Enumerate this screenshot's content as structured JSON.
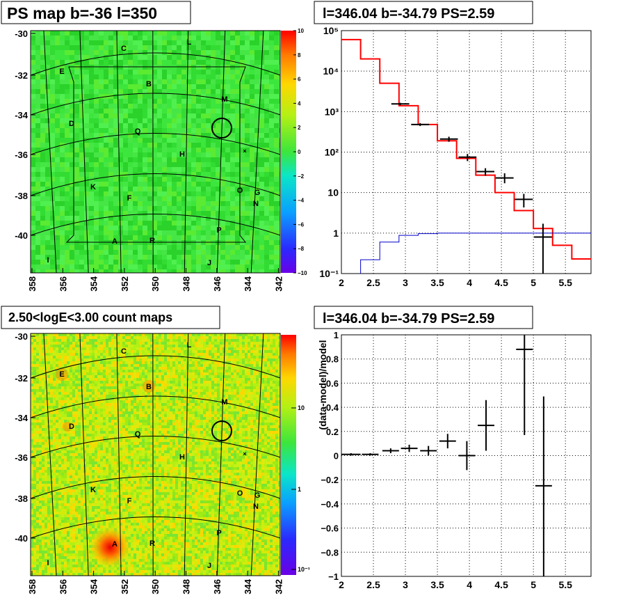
{
  "colors": {
    "map_green": "#3ce63c",
    "hist_red": "#ff0000",
    "model_blue": "#0000cc",
    "data": "#000000"
  },
  "panel_tl": {
    "title": "PS map b=-36 l=350",
    "ylabels": [
      "-30",
      "-32",
      "-34",
      "-36",
      "-38",
      "-40"
    ],
    "xlabels": [
      "358",
      "356",
      "354",
      "352",
      "350",
      "348",
      "346",
      "344",
      "342"
    ],
    "colorbar_labels": [
      "10",
      "8",
      "6",
      "4",
      "2",
      "0",
      "−2",
      "−4",
      "−6",
      "−8",
      "−10"
    ],
    "source_labels": [
      "C",
      "L",
      "E",
      "B",
      "M",
      "D",
      "Q",
      "H",
      "K",
      "F",
      "O",
      "G",
      "N",
      "P",
      "A",
      "R",
      "I",
      "J"
    ]
  },
  "panel_bl": {
    "title": "2.50<logE<3.00 count maps",
    "ylabels": [
      "-30",
      "-32",
      "-34",
      "-36",
      "-38",
      "-40"
    ],
    "xlabels": [
      "358",
      "356",
      "354",
      "352",
      "350",
      "348",
      "346",
      "344",
      "342"
    ],
    "colorbar_labels": [
      "10",
      "1",
      "10⁻¹"
    ],
    "source_labels": [
      "C",
      "L",
      "E",
      "B",
      "M",
      "D",
      "Q",
      "H",
      "K",
      "F",
      "O",
      "G",
      "N",
      "P",
      "A",
      "R",
      "I",
      "J"
    ]
  },
  "panel_tr": {
    "title": "l=346.04 b=-34.79 PS=2.59",
    "xticks": [
      "2",
      "2.5",
      "3",
      "3.5",
      "4",
      "4.5",
      "5",
      "5.5"
    ],
    "yticks": [
      "10⁻¹",
      "1",
      "10",
      "10²",
      "10³",
      "10⁴",
      "10⁵"
    ]
  },
  "panel_br": {
    "title": "l=346.04 b=-34.79 PS=2.59",
    "ylabel": "(data-model)/model",
    "xticks": [
      "2",
      "2.5",
      "3",
      "3.5",
      "4",
      "4.5",
      "5",
      "5.5"
    ],
    "yticks": [
      "−1",
      "−0.8",
      "−0.6",
      "−0.4",
      "−0.2",
      "0",
      "0.2",
      "0.4",
      "0.6",
      "0.8",
      "1"
    ]
  },
  "chart_data": [
    {
      "type": "heatmap",
      "title": "PS map b=-36 l=350",
      "x_range": [
        358,
        342
      ],
      "y_range": [
        -41.6,
        -29.7
      ],
      "colorbar_range": [
        -10,
        10
      ],
      "marker": {
        "l": 345.8,
        "b": -34.7
      }
    },
    {
      "type": "line",
      "title": "l=346.04 b=-34.79 PS=2.59",
      "xlim": [
        2,
        5.9
      ],
      "ylim": [
        0.1,
        100000
      ],
      "yscale": "log",
      "series": [
        {
          "style": "step-red",
          "edges": [
            2,
            2.3,
            2.6,
            2.9,
            3.2,
            3.5,
            3.8,
            4.1,
            4.4,
            4.7,
            5.0,
            5.3,
            5.6,
            5.9
          ],
          "values": [
            60000,
            20000,
            5000,
            1400,
            480,
            190,
            70,
            27,
            10,
            3.6,
            1.3,
            0.5,
            0.23
          ]
        },
        {
          "style": "step-blue",
          "edges": [
            2.3,
            2.6,
            2.9,
            3.2,
            3.5,
            5.9
          ],
          "values": [
            0.22,
            0.6,
            0.88,
            0.97,
            1.0
          ]
        },
        {
          "style": "errorbars",
          "x": [
            2.92,
            3.23,
            3.68,
            3.97,
            4.25,
            4.55,
            4.85,
            5.15
          ],
          "xerr": 0.14,
          "y": [
            1550,
            480,
            210,
            75,
            33,
            23,
            6.8,
            0.8
          ],
          "ylo": [
            1450,
            440,
            180,
            60,
            26,
            17,
            4.3,
            0.1
          ],
          "yhi": [
            1650,
            520,
            240,
            90,
            40,
            30,
            9.3,
            1.7
          ]
        }
      ]
    },
    {
      "type": "heatmap",
      "title": "2.50<logE<3.00 count maps",
      "x_range": [
        358,
        342
      ],
      "y_range": [
        -41.6,
        -29.7
      ],
      "colorbar_scale": "log",
      "hotspot": {
        "l": 352.9,
        "b": -40.2
      }
    },
    {
      "type": "scatter",
      "title": "l=346.04 b=-34.79 PS=2.59",
      "ylabel": "(data-model)/model",
      "xlim": [
        2,
        5.9
      ],
      "ylim": [
        -1,
        1
      ],
      "series": [
        {
          "x": [
            2.15,
            2.45,
            2.77,
            3.06,
            3.36,
            3.66,
            3.96,
            4.26,
            4.86,
            5.16
          ],
          "y": [
            0.01,
            0.01,
            0.04,
            0.06,
            0.04,
            0.12,
            0.0,
            0.25,
            0.88,
            -0.25
          ],
          "xerr": [
            0.15,
            0.13,
            0.13,
            0.13,
            0.13,
            0.13,
            0.13,
            0.13,
            0.13,
            0.13
          ],
          "ylo": [
            0.0,
            0.0,
            0.02,
            0.03,
            0.0,
            0.06,
            -0.12,
            0.04,
            0.17,
            -1.0
          ],
          "yhi": [
            0.02,
            0.02,
            0.06,
            0.09,
            0.08,
            0.18,
            0.12,
            0.46,
            1.0,
            0.49
          ]
        }
      ]
    }
  ]
}
